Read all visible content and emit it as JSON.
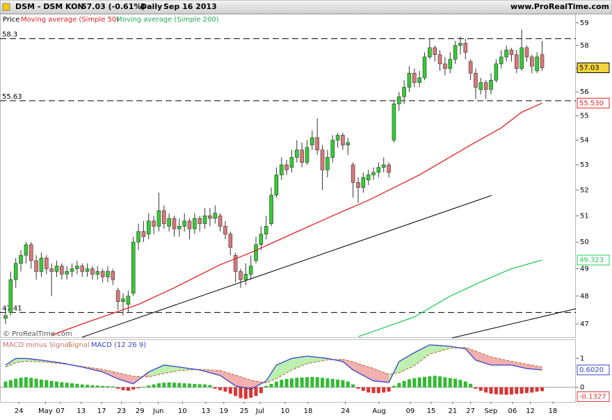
{
  "header": {
    "symbol": "DSM - DSM KON",
    "quote": "57.03 (-0.61%)",
    "period": "Daily",
    "date": "Sep 16 2013",
    "site": "www.ProRealTime.com"
  },
  "watermark": "© ProRealTime.com",
  "chart_data": [
    {
      "type": "candlestick",
      "title": "Price",
      "log_scale": true,
      "xlim": [
        -1.09,
        111.6
      ],
      "ylim": [
        46.53,
        59.4
      ],
      "yticks": [
        47,
        48,
        49,
        50,
        51,
        52,
        53,
        54,
        55,
        56,
        57,
        58,
        59
      ],
      "up_color": "#33cc33",
      "down_color": "#d9787a",
      "levels": [
        58.3,
        55.63,
        47.41
      ],
      "ohlc": [
        [
          47.2,
          47.6,
          47.0,
          47.3
        ],
        [
          47.4,
          48.9,
          47.3,
          48.6
        ],
        [
          48.6,
          49.4,
          48.3,
          49.2
        ],
        [
          49.2,
          49.7,
          48.9,
          49.5
        ],
        [
          49.5,
          50.0,
          49.2,
          49.9
        ],
        [
          49.9,
          50.0,
          49.0,
          49.3
        ],
        [
          49.3,
          49.5,
          48.6,
          48.9
        ],
        [
          48.9,
          49.6,
          48.7,
          49.4
        ],
        [
          49.4,
          49.5,
          48.8,
          49.0
        ],
        [
          49.0,
          49.2,
          48.0,
          48.9
        ],
        [
          48.9,
          49.3,
          48.7,
          49.1
        ],
        [
          49.1,
          49.2,
          48.6,
          48.8
        ],
        [
          48.8,
          49.1,
          48.6,
          48.9
        ],
        [
          48.9,
          49.2,
          48.7,
          49.0
        ],
        [
          49.0,
          49.3,
          48.8,
          49.1
        ],
        [
          49.1,
          49.2,
          48.7,
          48.9
        ],
        [
          48.9,
          49.2,
          48.7,
          49.0
        ],
        [
          49.0,
          49.1,
          48.6,
          48.8
        ],
        [
          48.8,
          49.1,
          48.6,
          48.9
        ],
        [
          48.9,
          49.0,
          48.5,
          48.7
        ],
        [
          48.7,
          49.1,
          48.5,
          48.9
        ],
        [
          48.9,
          49.0,
          48.4,
          48.6
        ],
        [
          48.2,
          48.3,
          47.5,
          47.8
        ],
        [
          47.8,
          48.1,
          47.3,
          47.9
        ],
        [
          47.7,
          48.2,
          47.4,
          48.0
        ],
        [
          48.1,
          50.2,
          48.0,
          50.0
        ],
        [
          50.0,
          50.7,
          49.7,
          50.4
        ],
        [
          50.4,
          50.8,
          50.0,
          50.2
        ],
        [
          50.3,
          51.1,
          50.1,
          50.8
        ],
        [
          50.8,
          51.0,
          50.3,
          50.6
        ],
        [
          50.6,
          51.9,
          50.4,
          51.2
        ],
        [
          51.2,
          51.4,
          50.5,
          50.7
        ],
        [
          50.6,
          51.1,
          50.4,
          50.9
        ],
        [
          50.9,
          51.0,
          50.2,
          50.5
        ],
        [
          50.5,
          50.9,
          50.2,
          50.6
        ],
        [
          50.6,
          51.1,
          50.4,
          50.8
        ],
        [
          50.8,
          50.9,
          50.1,
          50.5
        ],
        [
          50.5,
          51.1,
          50.3,
          50.9
        ],
        [
          50.9,
          51.0,
          50.4,
          50.7
        ],
        [
          50.7,
          51.3,
          50.5,
          51.0
        ],
        [
          51.0,
          51.3,
          50.6,
          50.9
        ],
        [
          50.9,
          51.4,
          50.7,
          51.1
        ],
        [
          51.0,
          51.1,
          50.4,
          50.6
        ],
        [
          50.6,
          50.8,
          50.1,
          50.3
        ],
        [
          50.3,
          50.4,
          49.5,
          49.8
        ],
        [
          49.5,
          49.6,
          48.5,
          48.9
        ],
        [
          48.9,
          49.0,
          48.3,
          48.6
        ],
        [
          48.6,
          49.2,
          48.4,
          48.8
        ],
        [
          48.8,
          49.5,
          48.6,
          49.1
        ],
        [
          49.3,
          50.2,
          49.2,
          49.9
        ],
        [
          49.9,
          50.6,
          49.7,
          50.3
        ],
        [
          50.3,
          51.0,
          50.1,
          50.6
        ],
        [
          50.7,
          52.1,
          50.6,
          51.8
        ],
        [
          51.8,
          52.9,
          51.7,
          52.6
        ],
        [
          52.6,
          53.3,
          52.4,
          53.0
        ],
        [
          53.0,
          53.2,
          52.6,
          52.8
        ],
        [
          52.9,
          53.6,
          52.7,
          53.3
        ],
        [
          53.3,
          54.0,
          53.1,
          53.6
        ],
        [
          53.6,
          53.9,
          52.9,
          53.1
        ],
        [
          53.1,
          54.0,
          53.0,
          53.7
        ],
        [
          53.8,
          54.4,
          53.6,
          54.1
        ],
        [
          54.1,
          54.9,
          53.4,
          53.6
        ],
        [
          53.6,
          53.8,
          52.0,
          52.8
        ],
        [
          52.8,
          53.6,
          52.5,
          53.3
        ],
        [
          53.3,
          54.2,
          53.1,
          54.0
        ],
        [
          54.0,
          54.3,
          53.7,
          54.2
        ],
        [
          54.2,
          54.3,
          53.6,
          53.8
        ],
        [
          53.8,
          54.1,
          53.4,
          53.9
        ],
        [
          53.0,
          53.1,
          51.7,
          52.3
        ],
        [
          52.3,
          52.5,
          51.5,
          52.1
        ],
        [
          52.1,
          52.7,
          51.9,
          52.5
        ],
        [
          52.4,
          52.8,
          52.2,
          52.6
        ],
        [
          52.6,
          52.9,
          52.4,
          52.7
        ],
        [
          52.7,
          53.1,
          52.5,
          52.9
        ],
        [
          52.9,
          53.3,
          52.7,
          53.0
        ],
        [
          53.0,
          53.1,
          52.5,
          52.7
        ],
        [
          54.0,
          55.6,
          53.9,
          55.5
        ],
        [
          55.5,
          56.0,
          55.2,
          55.8
        ],
        [
          55.8,
          56.5,
          55.5,
          56.2
        ],
        [
          56.2,
          57.1,
          56.0,
          56.8
        ],
        [
          56.8,
          57.0,
          56.2,
          56.4
        ],
        [
          56.4,
          56.9,
          56.2,
          56.6
        ],
        [
          56.6,
          57.7,
          56.5,
          57.5
        ],
        [
          57.5,
          58.3,
          57.4,
          57.9
        ],
        [
          57.9,
          58.0,
          57.3,
          57.6
        ],
        [
          57.6,
          57.8,
          56.9,
          57.2
        ],
        [
          57.2,
          57.5,
          56.7,
          57.0
        ],
        [
          57.0,
          57.7,
          56.8,
          57.4
        ],
        [
          57.4,
          58.2,
          57.2,
          58.0
        ],
        [
          58.0,
          58.4,
          57.6,
          58.1
        ],
        [
          58.1,
          58.3,
          57.4,
          57.7
        ],
        [
          57.3,
          57.4,
          56.5,
          56.8
        ],
        [
          56.8,
          57.0,
          55.7,
          56.2
        ],
        [
          56.1,
          56.6,
          55.9,
          56.4
        ],
        [
          56.4,
          56.5,
          55.7,
          56.1
        ],
        [
          56.1,
          56.8,
          55.9,
          56.5
        ],
        [
          56.5,
          57.4,
          56.4,
          57.2
        ],
        [
          57.2,
          57.8,
          57.0,
          57.5
        ],
        [
          57.5,
          58.0,
          57.3,
          57.8
        ],
        [
          57.8,
          57.9,
          57.3,
          57.6
        ],
        [
          57.6,
          57.8,
          56.8,
          57.0
        ],
        [
          57.0,
          58.7,
          56.9,
          57.9
        ],
        [
          57.9,
          58.0,
          57.3,
          57.5
        ],
        [
          57.5,
          57.6,
          56.8,
          57.1
        ],
        [
          56.9,
          57.7,
          56.8,
          57.5
        ],
        [
          57.6,
          58.2,
          56.9,
          57.03
        ]
      ],
      "series": [
        {
          "name": "Moving average (Simple 50)",
          "color": "#e02020",
          "x": [
            9,
            15,
            26,
            33,
            42,
            48,
            56,
            64,
            71,
            81,
            91,
            97,
            101,
            105
          ],
          "values": [
            46.6,
            47.0,
            47.7,
            48.3,
            49.15,
            49.6,
            50.3,
            51.0,
            51.6,
            52.6,
            53.8,
            54.5,
            55.15,
            55.53
          ],
          "value_labels": [
            null,
            null,
            null,
            null,
            null,
            null,
            null,
            null,
            null,
            null,
            null,
            null,
            null,
            "55.530"
          ]
        },
        {
          "name": "Moving average (Simple 200)",
          "color": "#22cc55",
          "x": [
            69,
            80,
            87,
            94,
            99,
            105
          ],
          "values": [
            46.55,
            47.25,
            48.0,
            48.6,
            49.0,
            49.323
          ]
        }
      ]
    },
    {
      "type": "macd",
      "xlim": [
        -1.09,
        111.6
      ],
      "ylim": [
        -0.506,
        1.66
      ],
      "yticks": [
        0,
        1
      ],
      "xticks": [
        {
          "value": 2.6,
          "label": "24"
        },
        {
          "value": 7.8,
          "label": "May"
        },
        {
          "value": 10.7,
          "label": "07"
        },
        {
          "value": 14.8,
          "label": "13"
        },
        {
          "value": 18.8,
          "label": "17"
        },
        {
          "value": 22.7,
          "label": "23"
        },
        {
          "value": 26.3,
          "label": "29"
        },
        {
          "value": 29.9,
          "label": "Jun"
        },
        {
          "value": 34.6,
          "label": "10"
        },
        {
          "value": 39.2,
          "label": "13"
        },
        {
          "value": 42.7,
          "label": "19"
        },
        {
          "value": 46.7,
          "label": "25"
        },
        {
          "value": 49.8,
          "label": "Jul"
        },
        {
          "value": 54.7,
          "label": "10"
        },
        {
          "value": 59.2,
          "label": "18"
        },
        {
          "value": 66.5,
          "label": "24"
        },
        {
          "value": 73.1,
          "label": "Aug"
        },
        {
          "value": 79.2,
          "label": "09"
        },
        {
          "value": 83.3,
          "label": "15"
        },
        {
          "value": 87.5,
          "label": "21"
        },
        {
          "value": 91,
          "label": "27"
        },
        {
          "value": 95,
          "label": "Sep"
        },
        {
          "value": 99.2,
          "label": "06"
        },
        {
          "value": 102.7,
          "label": "12"
        },
        {
          "value": 107.1,
          "label": "18"
        }
      ],
      "histogram": {
        "name": "MACD minus Signal",
        "up_color": "#33bb33",
        "down_color": "#dd3333",
        "values": [
          0.2,
          0.25,
          0.3,
          0.33,
          0.35,
          0.33,
          0.3,
          0.27,
          0.25,
          0.22,
          0.2,
          0.18,
          0.16,
          0.14,
          0.12,
          0.1,
          0.09,
          0.07,
          0.06,
          0.05,
          0.04,
          0.03,
          -0.05,
          -0.1,
          -0.12,
          -0.08,
          -0.03,
          0.02,
          0.06,
          0.1,
          0.14,
          0.16,
          0.17,
          0.16,
          0.15,
          0.14,
          0.13,
          0.12,
          0.11,
          0.1,
          0.08,
          -0.05,
          -0.1,
          -0.15,
          -0.22,
          -0.3,
          -0.38,
          -0.4,
          -0.36,
          -0.3,
          -0.2,
          0.05,
          0.12,
          0.2,
          0.26,
          0.29,
          0.31,
          0.33,
          0.34,
          0.35,
          0.36,
          0.35,
          0.33,
          0.31,
          0.29,
          0.27,
          0.25,
          0.2,
          0.1,
          -0.05,
          -0.12,
          -0.18,
          -0.2,
          -0.2,
          -0.18,
          -0.15,
          0.05,
          0.15,
          0.22,
          0.28,
          0.32,
          0.34,
          0.36,
          0.38,
          0.4,
          0.38,
          0.35,
          0.32,
          0.3,
          0.26,
          0.2,
          0.12,
          -0.05,
          -0.12,
          -0.18,
          -0.22,
          -0.24,
          -0.25,
          -0.26,
          -0.25,
          -0.23,
          -0.22,
          -0.2,
          -0.18,
          -0.15,
          -0.1327
        ]
      },
      "series": [
        {
          "name": "Signal",
          "color": "#c08050",
          "x": [
            0,
            2,
            4,
            7,
            11,
            15,
            19,
            22,
            25,
            28,
            31,
            34,
            38,
            42,
            45,
            48,
            51,
            53,
            56,
            59,
            63,
            66,
            68,
            72,
            75,
            77,
            80,
            83,
            87,
            90,
            92,
            95,
            99,
            102,
            105
          ],
          "values": [
            0.7,
            0.85,
            0.9,
            0.88,
            0.82,
            0.72,
            0.62,
            0.5,
            0.38,
            0.36,
            0.48,
            0.58,
            0.62,
            0.58,
            0.42,
            0.25,
            0.15,
            0.3,
            0.6,
            0.82,
            0.95,
            0.97,
            0.88,
            0.65,
            0.45,
            0.5,
            0.75,
            1.15,
            1.35,
            1.38,
            1.25,
            1.05,
            0.9,
            0.8,
            0.7
          ]
        },
        {
          "name": "MACD (12 26 9)",
          "color": "#3344cc",
          "x": [
            0,
            2,
            4,
            7,
            11,
            15,
            19,
            22,
            25,
            28,
            31,
            34,
            38,
            42,
            45,
            48,
            51,
            53,
            56,
            59,
            63,
            66,
            68,
            72,
            75,
            77,
            80,
            83,
            87,
            90,
            92,
            95,
            99,
            102,
            105
          ],
          "values": [
            0.77,
            1.0,
            1.0,
            0.94,
            0.84,
            0.7,
            0.53,
            0.29,
            0.12,
            0.53,
            0.77,
            0.7,
            0.6,
            0.41,
            0.05,
            -0.07,
            0.22,
            0.77,
            1.0,
            1.08,
            1.0,
            0.89,
            0.6,
            0.22,
            0.17,
            0.89,
            1.2,
            1.47,
            1.42,
            1.33,
            0.94,
            0.77,
            0.77,
            0.65,
            0.602
          ],
          "value_labels": [
            null,
            null,
            null,
            null,
            null,
            null,
            null,
            null,
            null,
            null,
            null,
            null,
            null,
            null,
            null,
            null,
            null,
            null,
            null,
            null,
            null,
            null,
            null,
            null,
            null,
            null,
            null,
            null,
            null,
            null,
            null,
            null,
            null,
            null,
            "0.6020"
          ]
        }
      ]
    }
  ]
}
